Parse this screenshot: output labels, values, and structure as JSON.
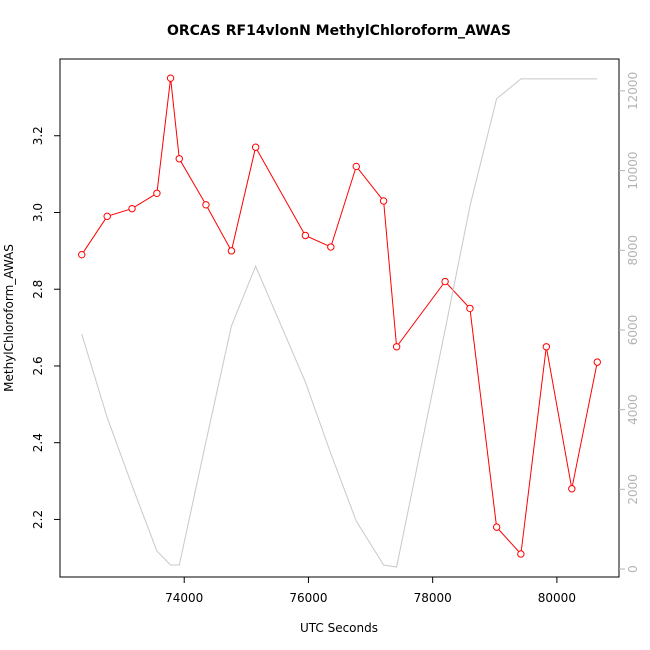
{
  "chart_data": {
    "type": "line",
    "title": "ORCAS RF14vlonN MethylChloroform_AWAS",
    "xlabel": "UTC Seconds",
    "ylabel": "MethylChloroform_AWAS",
    "y2label": "",
    "xlim": [
      72000,
      81000
    ],
    "ylim": [
      2.05,
      3.4
    ],
    "y2lim": [
      -200,
      12800
    ],
    "x_ticks": [
      74000,
      76000,
      78000,
      80000
    ],
    "y_ticks": [
      2.2,
      2.4,
      2.6,
      2.8,
      3.0,
      3.2
    ],
    "y2_ticks": [
      0,
      2000,
      4000,
      6000,
      8000,
      10000,
      12000
    ],
    "grid": false,
    "series": [
      {
        "axis": "left",
        "color": "#ff0000",
        "marker": "open-circle",
        "x": [
          72350,
          72760,
          73160,
          73560,
          73780,
          73920,
          74350,
          74760,
          75150,
          75950,
          76360,
          76770,
          77210,
          77420,
          78200,
          78600,
          79030,
          79420,
          79830,
          80240,
          80650
        ],
        "values": [
          2.89,
          2.99,
          3.01,
          3.05,
          3.35,
          3.14,
          3.02,
          2.9,
          3.17,
          2.94,
          2.91,
          3.12,
          3.03,
          2.65,
          2.82,
          2.75,
          2.18,
          2.11,
          2.65,
          2.28,
          2.61
        ]
      },
      {
        "axis": "right",
        "color": "#c8c8c8",
        "marker": "none",
        "x": [
          72350,
          72760,
          73160,
          73560,
          73780,
          73920,
          74350,
          74760,
          75150,
          75950,
          76360,
          76770,
          77210,
          77420,
          78200,
          78600,
          79030,
          79420,
          79830,
          80240,
          80650
        ],
        "values": [
          5900,
          3800,
          2100,
          450,
          100,
          100,
          3200,
          6100,
          7600,
          4700,
          2900,
          1200,
          100,
          50,
          6000,
          9100,
          11800,
          12300,
          12300,
          12300,
          12300
        ]
      }
    ]
  }
}
